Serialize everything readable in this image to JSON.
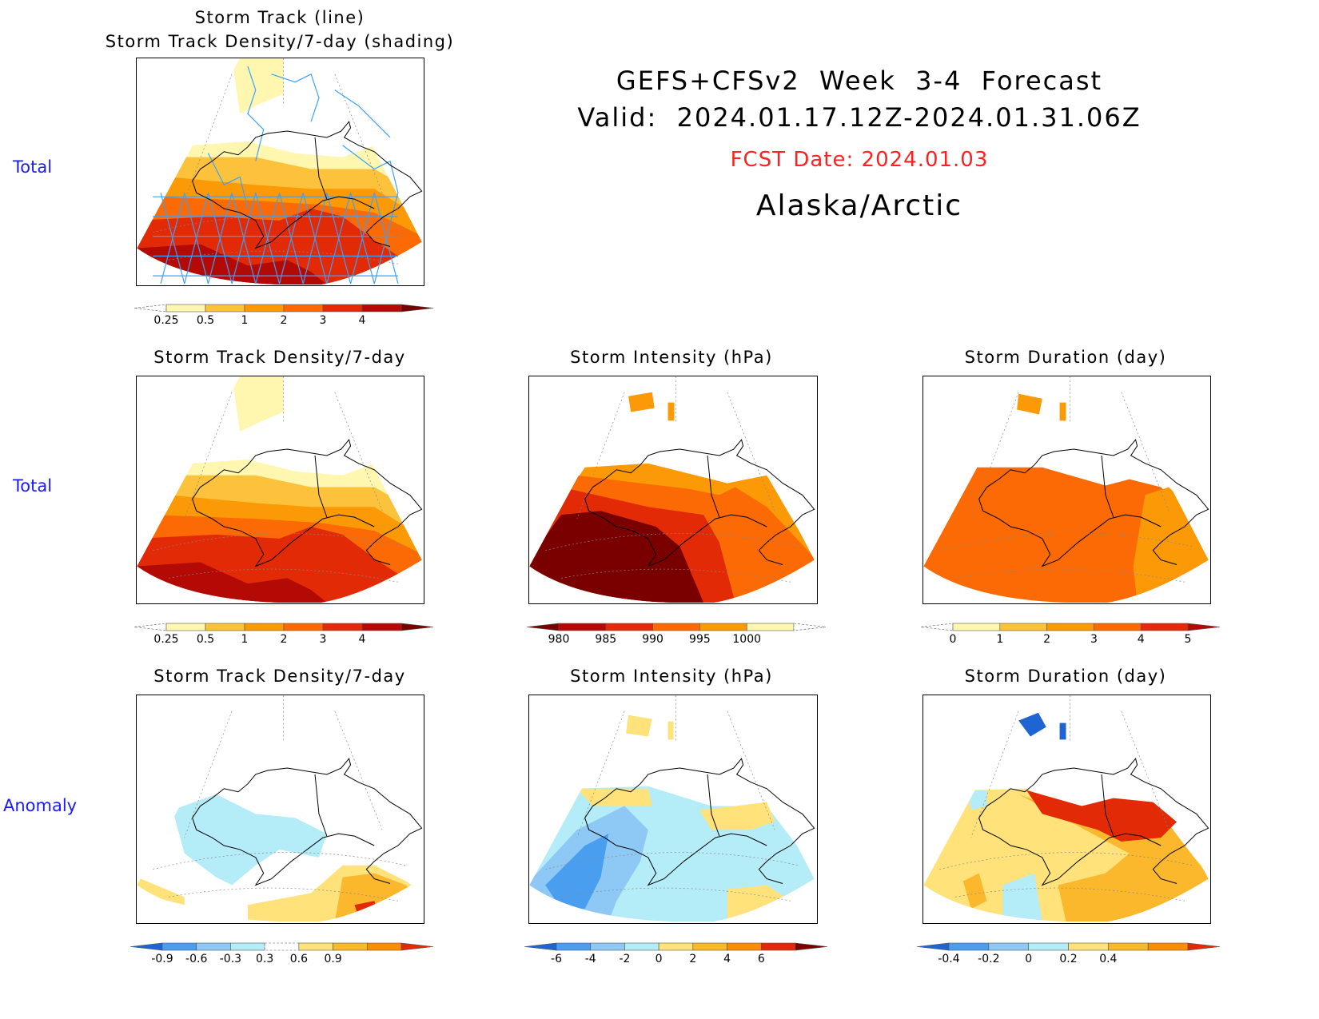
{
  "header": {
    "line1": "GEFS+CFSv2  Week  3-4  Forecast",
    "line2": "Valid:  2024.01.17.12Z-2024.01.31.06Z",
    "fcst": "FCST Date: 2024.01.03",
    "region": "Alaska/Arctic"
  },
  "row_labels": [
    "Total",
    "Total",
    "Anomaly"
  ],
  "colors": {
    "label_blue": "#1a1aff",
    "fcst_red": "#ff2020",
    "track_line": "#3aa0ff"
  },
  "chart_data": [
    {
      "type": "heatmap",
      "title_line1": "Storm Track (line)",
      "title_line2": "Storm Track Density/7-day (shading)",
      "row": "Total",
      "colorbar": {
        "levels": [
          "0.25",
          "0.5",
          "1",
          "2",
          "3",
          "4"
        ],
        "colors": [
          "#ffffff",
          "#fff7b0",
          "#fdc23c",
          "#fb9a06",
          "#fb6a04",
          "#e22a06",
          "#b30a06",
          "#7a0000"
        ],
        "open_ends": "both"
      },
      "overlay": "storm track lines"
    },
    {
      "type": "heatmap",
      "title": "Storm Track Density/7-day",
      "row": "Total",
      "colorbar": {
        "levels": [
          "0.25",
          "0.5",
          "1",
          "2",
          "3",
          "4"
        ],
        "colors": [
          "#ffffff",
          "#fff7b0",
          "#fdc23c",
          "#fb9a06",
          "#fb6a04",
          "#e22a06",
          "#b30a06",
          "#7a0000"
        ],
        "open_ends": "both"
      }
    },
    {
      "type": "heatmap",
      "title": "Storm Intensity (hPa)",
      "row": "Total",
      "colorbar": {
        "levels": [
          "980",
          "985",
          "990",
          "995",
          "1000"
        ],
        "colors": [
          "#7a0000",
          "#b30a06",
          "#e22a06",
          "#fb6a04",
          "#fb9a06",
          "#fff7b0",
          "#ffffff"
        ],
        "open_ends": "both"
      }
    },
    {
      "type": "heatmap",
      "title": "Storm Duration (day)",
      "row": "Total",
      "colorbar": {
        "levels": [
          "0",
          "1",
          "2",
          "3",
          "4",
          "5"
        ],
        "colors": [
          "#ffffff",
          "#fff7b0",
          "#fdc23c",
          "#fb9a06",
          "#fb6a04",
          "#e22a06",
          "#b30a06"
        ],
        "open_ends": "both"
      }
    },
    {
      "type": "heatmap",
      "title": "Storm Track Density/7-day",
      "row": "Anomaly",
      "colorbar": {
        "levels": [
          "-0.9",
          "-0.6",
          "-0.3",
          "0.3",
          "0.6",
          "0.9"
        ],
        "colors": [
          "#1e64d2",
          "#4a9ef0",
          "#8ec8f4",
          "#b4ecf8",
          "#ffffff",
          "#ffe27a",
          "#fbb82c",
          "#fb8c06",
          "#e22a06"
        ],
        "open_ends": "both"
      }
    },
    {
      "type": "heatmap",
      "title": "Storm Intensity (hPa)",
      "row": "Anomaly",
      "colorbar": {
        "levels": [
          "-6",
          "-4",
          "-2",
          "0",
          "2",
          "4",
          "6"
        ],
        "colors": [
          "#1e64d2",
          "#4a9ef0",
          "#8ec8f4",
          "#b4ecf8",
          "#ffe27a",
          "#fbb82c",
          "#fb8c06",
          "#e22a06",
          "#7a0000"
        ],
        "open_ends": "both"
      }
    },
    {
      "type": "heatmap",
      "title": "Storm Duration (day)",
      "row": "Anomaly",
      "colorbar": {
        "levels": [
          "-0.4",
          "-0.2",
          "0",
          "0.2",
          "0.4"
        ],
        "colors": [
          "#1e64d2",
          "#4a9ef0",
          "#8ec8f4",
          "#b4ecf8",
          "#ffe27a",
          "#fbb82c",
          "#fb8c06",
          "#e22a06"
        ],
        "open_ends": "both"
      }
    }
  ]
}
